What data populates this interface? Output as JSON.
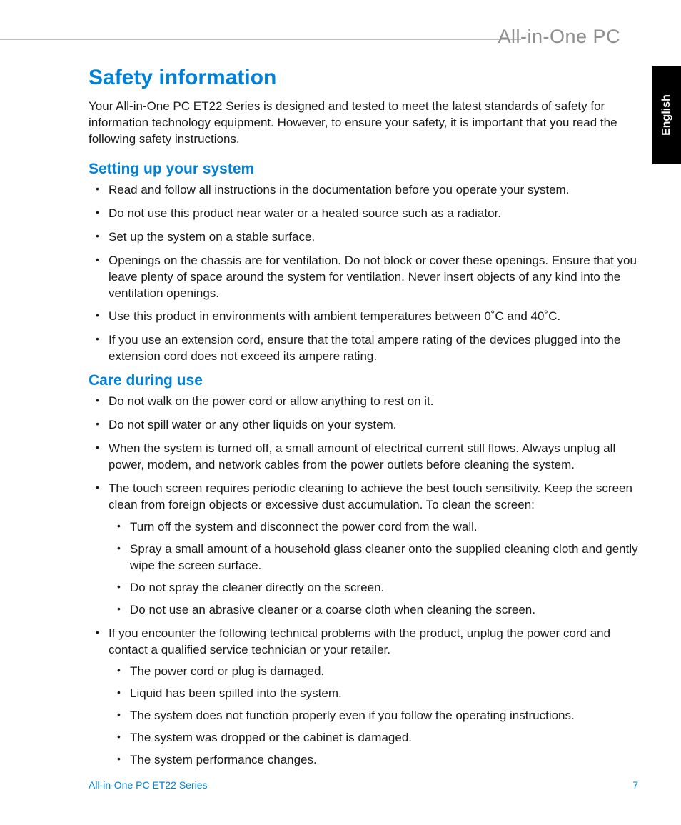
{
  "colors": {
    "accent": "#0080d8",
    "body_text": "#1a1a1a",
    "rule": "#bfbfbf",
    "brand_text": "#8f8f8f",
    "tab_bg": "#000000",
    "tab_text": "#ffffff",
    "page_bg": "#ffffff"
  },
  "typography": {
    "h1_size_pt": 22,
    "h2_size_pt": 16,
    "body_size_pt": 12.5,
    "footer_size_pt": 10.5,
    "brand_size_pt": 20
  },
  "header": {
    "brand": "All-in-One PC",
    "language_tab": "English"
  },
  "main": {
    "title": "Safety information",
    "intro": "Your All-in-One PC ET22 Series is designed and tested to meet the latest standards of safety for information technology equipment. However, to ensure your safety, it is important that you read the following safety instructions.",
    "sections": [
      {
        "heading": "Setting up your system",
        "items": [
          {
            "text": "Read and follow all instructions in the documentation before you operate your system."
          },
          {
            "text": "Do not use this product near water or a heated source such as a radiator."
          },
          {
            "text": "Set up the system on a stable surface."
          },
          {
            "text": "Openings on the chassis are for ventilation. Do not block or cover these openings. Ensure that you leave plenty of space around the system for ventilation. Never insert objects of any kind into the ventilation openings."
          },
          {
            "text": "Use this product in environments with ambient temperatures between 0˚C and 40˚C."
          },
          {
            "text": "If you use an extension cord, ensure that the total ampere rating of the devices plugged into the extension cord does not exceed its ampere rating."
          }
        ]
      },
      {
        "heading": "Care during use",
        "items": [
          {
            "text": "Do not walk on the power cord or allow anything to rest on it."
          },
          {
            "text": "Do not spill water or any other liquids on your system."
          },
          {
            "text": "When the system is turned off, a small amount of electrical current still flows. Always unplug all power, modem, and network cables from the power outlets before cleaning the system."
          },
          {
            "text": "The touch screen requires periodic cleaning to achieve the best touch sensitivity. Keep the screen clean from foreign objects or excessive dust accumulation. To clean the screen:",
            "subitems": [
              "Turn off the system and disconnect the power cord from the wall.",
              "Spray a small amount of a household glass cleaner onto the supplied cleaning cloth and gently wipe the screen surface.",
              "Do not spray the cleaner directly on the screen.",
              "Do not use an abrasive cleaner or a coarse cloth when cleaning the screen."
            ]
          },
          {
            "text": "If you encounter the following technical problems with the product, unplug the power cord and contact a qualified service technician or your retailer.",
            "subitems": [
              "The power cord or plug is damaged.",
              "Liquid has been spilled into the system.",
              "The system does not function properly even if you follow the operating instructions.",
              "The system was dropped or the cabinet is damaged.",
              "The system performance changes."
            ]
          }
        ]
      }
    ]
  },
  "footer": {
    "product": "All-in-One PC ET22 Series",
    "page_number": "7"
  }
}
